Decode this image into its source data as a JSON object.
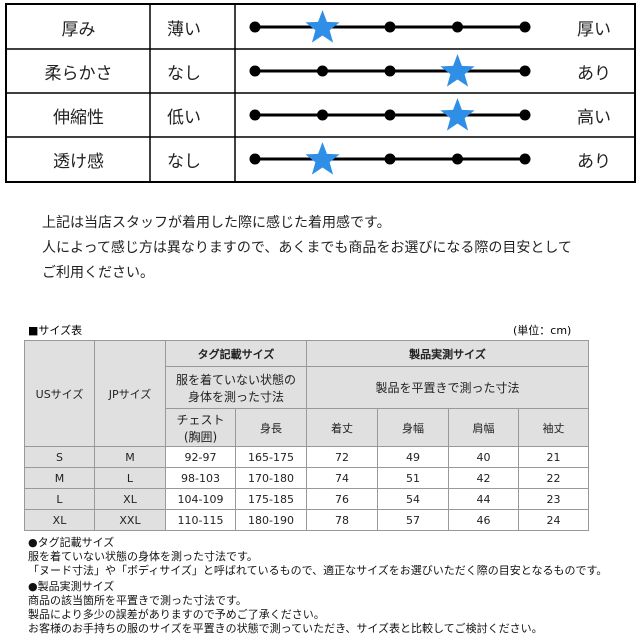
{
  "feel": {
    "levels": 5,
    "rows": [
      {
        "label": "厚み",
        "left": "薄い",
        "right": "厚い",
        "level": 2
      },
      {
        "label": "柔らかさ",
        "left": "なし",
        "right": "あり",
        "level": 4
      },
      {
        "label": "伸縮性",
        "left": "低い",
        "right": "高い",
        "level": 4
      },
      {
        "label": "透け感",
        "left": "なし",
        "right": "あり",
        "level": 2
      }
    ]
  },
  "notes": [
    "上記は当店スタッフが着用した際に感じた着用感です。",
    "人によって感じ方は異なりますので、あくまでも商品をお選びになる際の目安として",
    "ご利用ください。"
  ],
  "size_table": {
    "title": "■サイズ表",
    "unit": "(単位：cm)",
    "us": "USサイズ",
    "jp": "JPサイズ",
    "tag_group": "タグ記載サイズ",
    "tag_note": [
      "服を着ていない状態の",
      "身体を測った寸法"
    ],
    "actual_group": "製品実測サイズ",
    "actual_note": "製品を平置きで測った寸法",
    "chest": [
      "チェスト",
      "(胸囲)"
    ],
    "columns": [
      "身長",
      "着丈",
      "身幅",
      "肩幅",
      "袖丈"
    ],
    "rows": [
      [
        "S",
        "M",
        "92-97",
        "165-175",
        "72",
        "49",
        "40",
        "21"
      ],
      [
        "M",
        "L",
        "98-103",
        "170-180",
        "74",
        "51",
        "42",
        "22"
      ],
      [
        "L",
        "XL",
        "104-109",
        "175-185",
        "76",
        "54",
        "44",
        "23"
      ],
      [
        "XL",
        "XXL",
        "110-115",
        "180-190",
        "78",
        "57",
        "46",
        "24"
      ]
    ]
  },
  "footnotes": [
    "●タグ記載サイズ",
    "服を着ていない状態の身体を測った寸法です。",
    "「ヌード寸法」や「ボディサイズ」と呼ばれているもので、適正なサイズをお選びいただく際の目安となるものです。",
    "●製品実測サイズ",
    "商品の該当箇所を平置きで測った寸法です。",
    "製品により多少の誤差がありますので予めご了承ください。",
    "お客様のお手持ちの服のサイズを平置きの状態で測っていただき、サイズ表と比較してご検討ください。"
  ]
}
